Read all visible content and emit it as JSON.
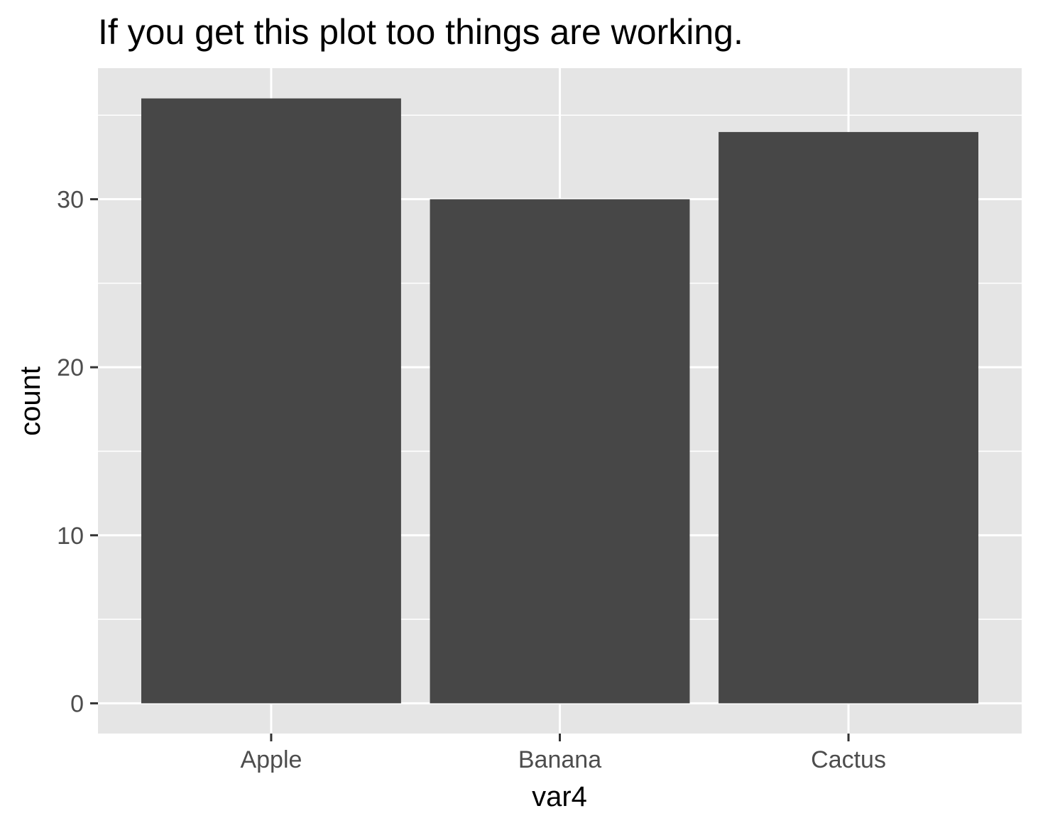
{
  "chart_data": {
    "type": "bar",
    "title": "If you get this plot too things are working.",
    "xlabel": "var4",
    "ylabel": "count",
    "categories": [
      "Apple",
      "Banana",
      "Cactus"
    ],
    "values": [
      36,
      30,
      34
    ],
    "ylim": [
      -1.8,
      37.8
    ],
    "yticks": [
      0,
      10,
      20,
      30
    ],
    "ytick_labels": [
      "0",
      "10",
      "20",
      "30"
    ],
    "grid": true,
    "legend": "none",
    "colors": {
      "bar": "#474747",
      "panel": "#e5e5e5",
      "grid": "#ffffff",
      "tick_text": "#4d4d4d",
      "tick_mark": "#333333"
    }
  }
}
